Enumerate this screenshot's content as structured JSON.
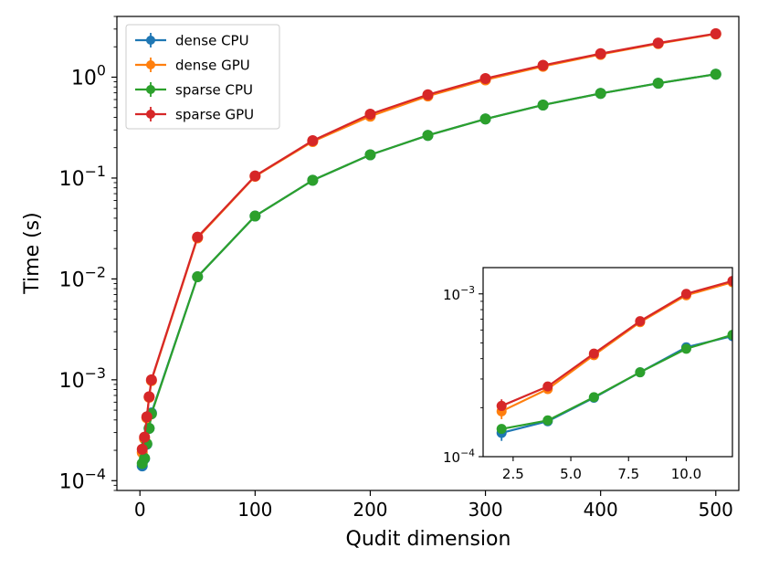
{
  "chart_data": {
    "type": "line",
    "xlabel": "Qudit dimension",
    "ylabel": "Time (s)",
    "yscale": "log",
    "xlim": [
      -20,
      520
    ],
    "ylim": [
      8e-05,
      4.0
    ],
    "xticks": [
      "0",
      "100",
      "200",
      "300",
      "400",
      "500"
    ],
    "yticks": [
      {
        "mant": "10",
        "exp": "−4"
      },
      {
        "mant": "10",
        "exp": "−3"
      },
      {
        "mant": "10",
        "exp": "−2"
      },
      {
        "mant": "10",
        "exp": "−1"
      },
      {
        "mant": "10",
        "exp": "0"
      }
    ],
    "legend_position": "top-left",
    "grid": false,
    "colors": {
      "dense_cpu": "#1f77b4",
      "dense_gpu": "#ff7f0e",
      "sparse_cpu": "#2ca02c",
      "sparse_gpu": "#d62728"
    },
    "series": [
      {
        "name": "dense CPU",
        "x": [
          2,
          4,
          6,
          8,
          10,
          50,
          100,
          150,
          200,
          250,
          300,
          350,
          400,
          450,
          500
        ],
        "y": [
          0.00014,
          0.000165,
          0.00023,
          0.00033,
          0.00047,
          0.0105,
          0.042,
          0.095,
          0.17,
          0.265,
          0.385,
          0.53,
          0.69,
          0.87,
          1.07
        ]
      },
      {
        "name": "dense GPU",
        "x": [
          2,
          4,
          6,
          8,
          10,
          50,
          100,
          150,
          200,
          250,
          300,
          350,
          400,
          450,
          500
        ],
        "y": [
          0.00019,
          0.00026,
          0.00042,
          0.00067,
          0.00098,
          0.0255,
          0.104,
          0.23,
          0.41,
          0.65,
          0.94,
          1.28,
          1.68,
          2.15,
          2.68
        ]
      },
      {
        "name": "sparse CPU",
        "x": [
          2,
          4,
          6,
          8,
          10,
          50,
          100,
          150,
          200,
          250,
          300,
          350,
          400,
          450,
          500
        ],
        "y": [
          0.000148,
          0.000167,
          0.000232,
          0.00033,
          0.00046,
          0.0105,
          0.042,
          0.095,
          0.17,
          0.265,
          0.385,
          0.53,
          0.69,
          0.87,
          1.07
        ]
      },
      {
        "name": "sparse GPU",
        "x": [
          2,
          4,
          6,
          8,
          10,
          50,
          100,
          150,
          200,
          250,
          300,
          350,
          400,
          450,
          500
        ],
        "y": [
          0.000205,
          0.00027,
          0.00043,
          0.00068,
          0.001,
          0.026,
          0.105,
          0.235,
          0.43,
          0.67,
          0.97,
          1.31,
          1.71,
          2.18,
          2.7
        ]
      }
    ],
    "inset": {
      "xlim": [
        1.2,
        12
      ],
      "ylim": [
        0.0001,
        0.00145
      ],
      "yscale": "log",
      "xticks": [
        "2.5",
        "5.0",
        "7.5",
        "10.0"
      ],
      "yticks": [
        {
          "mant": "10",
          "exp": "−4"
        },
        {
          "mant": "10",
          "exp": "−3"
        }
      ],
      "series": [
        {
          "name": "dense CPU",
          "x": [
            2,
            4,
            6,
            8,
            10,
            12
          ],
          "y": [
            0.00014,
            0.000165,
            0.00023,
            0.00033,
            0.00047,
            0.00055
          ],
          "yerr_low": [
            1.5e-05,
            0,
            0,
            0,
            0,
            0
          ]
        },
        {
          "name": "dense GPU",
          "x": [
            2,
            4,
            6,
            8,
            10,
            12
          ],
          "y": [
            0.00019,
            0.00026,
            0.00042,
            0.00067,
            0.00098,
            0.00118
          ],
          "yerr_low": [
            2e-05,
            0,
            0,
            0,
            0,
            0
          ]
        },
        {
          "name": "sparse CPU",
          "x": [
            2,
            4,
            6,
            8,
            10,
            12
          ],
          "y": [
            0.000148,
            0.000167,
            0.000232,
            0.00033,
            0.00046,
            0.00056
          ],
          "yerr_low": [
            0,
            0,
            0,
            0,
            0,
            0
          ]
        },
        {
          "name": "sparse GPU",
          "x": [
            2,
            4,
            6,
            8,
            10,
            12
          ],
          "y": [
            0.000205,
            0.00027,
            0.00043,
            0.00068,
            0.001,
            0.0012
          ],
          "yerr_low": [
            0,
            0,
            0,
            0,
            0,
            0
          ],
          "yerr_high": [
            2e-05,
            0,
            0,
            0,
            0,
            0
          ]
        }
      ]
    }
  }
}
